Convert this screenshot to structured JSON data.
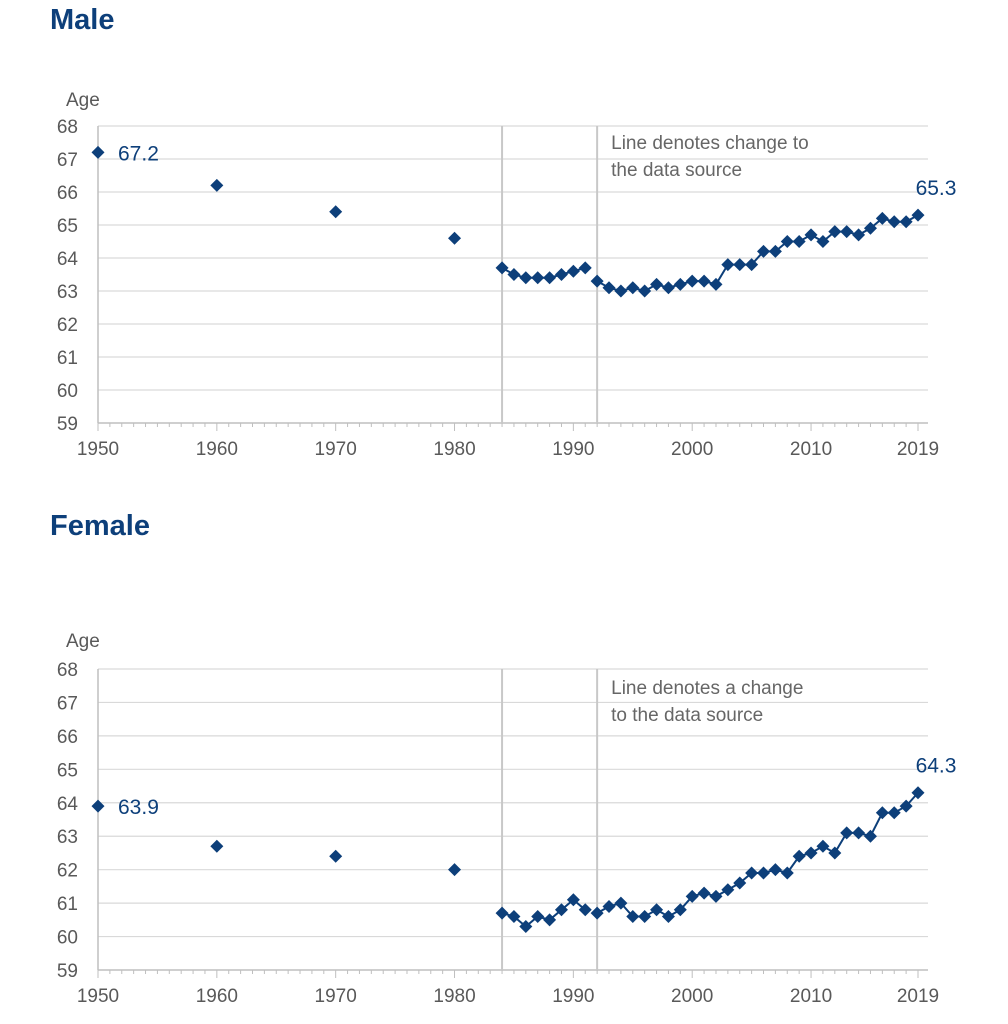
{
  "chart_data": [
    {
      "type": "scatter",
      "title": "Male",
      "ylabel": "Age",
      "xlabel": "",
      "xlim": [
        1950,
        2019
      ],
      "ylim": [
        59,
        68
      ],
      "y_ticks": [
        68,
        67,
        66,
        65,
        64,
        63,
        62,
        61,
        60,
        59
      ],
      "x_tick_labels": [
        "1950",
        "1960",
        "1970",
        "1980",
        "1990",
        "2000",
        "2010",
        "2019"
      ],
      "grid": true,
      "annotation": {
        "lines": [
          "Line denotes change to",
          "the data source"
        ]
      },
      "data_labels": [
        {
          "x": 1950,
          "y": 67.2,
          "text": "67.2"
        },
        {
          "x": 2019,
          "y": 65.3,
          "text": "65.3"
        }
      ],
      "vertical_lines": [
        1984,
        1992
      ],
      "isolated_points": [
        {
          "x": 1950,
          "y": 67.2
        },
        {
          "x": 1960,
          "y": 66.2
        },
        {
          "x": 1970,
          "y": 65.4
        },
        {
          "x": 1980,
          "y": 64.6
        }
      ],
      "connected_series": [
        {
          "x": [
            1984,
            1985,
            1986,
            1987,
            1988,
            1989,
            1990,
            1991
          ],
          "y": [
            63.7,
            63.5,
            63.4,
            63.4,
            63.4,
            63.5,
            63.6,
            63.7
          ]
        },
        {
          "x": [
            1992,
            1993,
            1994,
            1995,
            1996,
            1997,
            1998,
            1999,
            2000,
            2001,
            2002,
            2003,
            2004,
            2005,
            2006,
            2007,
            2008,
            2009,
            2010,
            2011,
            2012,
            2013,
            2014,
            2015,
            2016,
            2017,
            2018,
            2019
          ],
          "y": [
            63.3,
            63.1,
            63.0,
            63.1,
            63.0,
            63.2,
            63.1,
            63.2,
            63.3,
            63.3,
            63.2,
            63.8,
            63.8,
            63.8,
            64.2,
            64.2,
            64.5,
            64.5,
            64.7,
            64.5,
            64.8,
            64.8,
            64.7,
            64.9,
            65.2,
            65.1,
            65.1,
            65.3
          ]
        }
      ]
    },
    {
      "type": "scatter",
      "title": "Female",
      "ylabel": "Age",
      "xlabel": "",
      "xlim": [
        1950,
        2019
      ],
      "ylim": [
        59,
        68
      ],
      "y_ticks": [
        68,
        67,
        66,
        65,
        64,
        63,
        62,
        61,
        60,
        59
      ],
      "x_tick_labels": [
        "1950",
        "1960",
        "1970",
        "1980",
        "1990",
        "2000",
        "2010",
        "2019"
      ],
      "grid": true,
      "annotation": {
        "lines": [
          "Line denotes a change",
          "to the data source"
        ]
      },
      "data_labels": [
        {
          "x": 1950,
          "y": 63.9,
          "text": "63.9"
        },
        {
          "x": 2019,
          "y": 64.3,
          "text": "64.3"
        }
      ],
      "vertical_lines": [
        1984,
        1992
      ],
      "isolated_points": [
        {
          "x": 1950,
          "y": 63.9
        },
        {
          "x": 1960,
          "y": 62.7
        },
        {
          "x": 1970,
          "y": 62.4
        },
        {
          "x": 1980,
          "y": 62.0
        }
      ],
      "connected_series": [
        {
          "x": [
            1984,
            1985,
            1986,
            1987,
            1988,
            1989,
            1990,
            1991
          ],
          "y": [
            60.7,
            60.6,
            60.3,
            60.6,
            60.5,
            60.8,
            61.1,
            60.8
          ]
        },
        {
          "x": [
            1992,
            1993,
            1994,
            1995,
            1996,
            1997,
            1998,
            1999,
            2000,
            2001,
            2002,
            2003,
            2004,
            2005,
            2006,
            2007,
            2008,
            2009,
            2010,
            2011,
            2012,
            2013,
            2014,
            2015,
            2016,
            2017,
            2018,
            2019
          ],
          "y": [
            60.7,
            60.9,
            61.0,
            60.6,
            60.6,
            60.8,
            60.6,
            60.8,
            61.2,
            61.3,
            61.2,
            61.4,
            61.6,
            61.9,
            61.9,
            62.0,
            61.9,
            62.4,
            62.5,
            62.7,
            62.5,
            63.1,
            63.1,
            63.0,
            63.7,
            63.7,
            63.9,
            64.3
          ]
        }
      ]
    }
  ],
  "colors": {
    "marker": "#0d3f7a",
    "title": "#0d3f7a",
    "axis_text": "#595959",
    "grid": "#d9d9d9",
    "divider": "#c8c8c8"
  }
}
